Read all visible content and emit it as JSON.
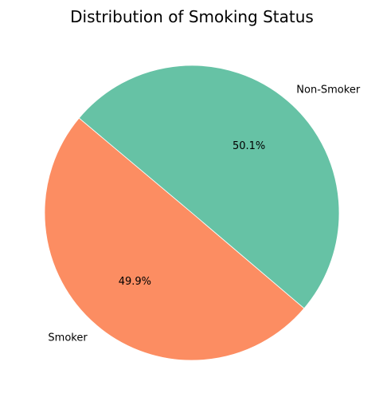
{
  "chart_data": {
    "type": "pie",
    "title": "Distribution of Smoking Status",
    "slices": [
      {
        "label": "Smoker",
        "value": 49.9,
        "pct_label": "49.9%",
        "color": "#fc8d62"
      },
      {
        "label": "Non-Smoker",
        "value": 50.1,
        "pct_label": "50.1%",
        "color": "#66c2a5"
      }
    ],
    "start_angle_deg": 140,
    "direction": "counterclockwise"
  }
}
